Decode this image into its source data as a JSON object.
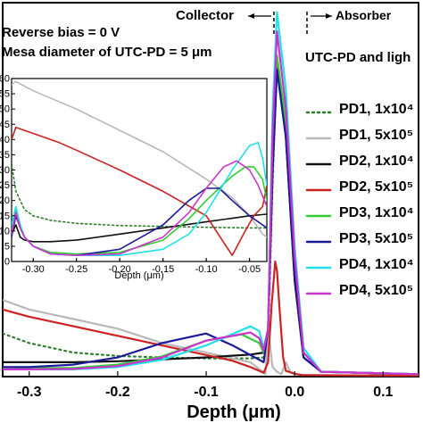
{
  "annotations": {
    "bias": "Reverse bias = 0 V",
    "mesa": "Mesa diameter of UTC-PD = 5 μm",
    "collector": "Collector",
    "absorber": "Absorber"
  },
  "colors": {
    "PD1_1e4": "#2e7d2e",
    "PD1_5e5": "#b8b8b8",
    "PD2_1e4": "#111111",
    "PD2_5e5": "#cc2222",
    "PD3_1e4": "#33cc33",
    "PD3_5e5": "#1a1a99",
    "PD4_1e4": "#22e0e8",
    "PD4_5e5": "#cc33cc"
  },
  "chart_data": [
    {
      "type": "line",
      "xlabel": "Depth (μm)",
      "xlim": [
        -0.33,
        0.14
      ],
      "ylim": [
        0,
        78
      ],
      "x_ticks": [
        "-0.3",
        "-0.2",
        "-0.1",
        "0.0",
        "0.1"
      ],
      "x_tick_values": [
        -0.3,
        -0.2,
        -0.1,
        0.0,
        0.1
      ],
      "legend_title": "UTC-PD and ligh",
      "series": [
        {
          "name": "PD1, 1x10⁴",
          "style": "dotted",
          "color_key": "PD1_1e4",
          "x": [
            -0.33,
            -0.3,
            -0.25,
            -0.2,
            -0.15,
            -0.1,
            -0.05,
            -0.035,
            -0.03,
            -0.025,
            -0.02,
            -0.01,
            0.0,
            0.01,
            0.03,
            0.14
          ],
          "y": [
            9,
            7,
            5,
            4.3,
            4,
            3.8,
            3.8,
            4,
            8,
            40,
            66,
            50,
            20,
            4,
            1,
            0.5
          ]
        },
        {
          "name": "PD1, 5x10⁵",
          "style": "solid",
          "color_key": "PD1_5e5",
          "x": [
            -0.33,
            -0.3,
            -0.25,
            -0.2,
            -0.15,
            -0.1,
            -0.05,
            -0.036,
            -0.033,
            -0.03,
            -0.025,
            -0.02,
            -0.015,
            -0.01,
            -0.005,
            0.0,
            0.01,
            0.14
          ],
          "y": [
            16,
            14,
            12,
            10,
            7,
            5,
            3,
            1,
            0.5,
            10,
            2,
            1,
            0.5,
            3,
            1,
            0.5,
            0.3,
            0.2
          ]
        },
        {
          "name": "PD2, 1x10⁴",
          "style": "solid",
          "color_key": "PD2_1e4",
          "x": [
            -0.33,
            -0.3,
            -0.25,
            -0.2,
            -0.15,
            -0.1,
            -0.05,
            -0.035,
            -0.03,
            -0.025,
            -0.02,
            -0.01,
            0.0,
            0.01,
            0.03,
            0.14
          ],
          "y": [
            3,
            3,
            3,
            3.2,
            3.6,
            4,
            4.6,
            5,
            10,
            45,
            65,
            50,
            20,
            4,
            1,
            0.5
          ]
        },
        {
          "name": "PD2, 5x10⁵",
          "style": "solid",
          "color_key": "PD2_5e5",
          "x": [
            -0.33,
            -0.3,
            -0.25,
            -0.2,
            -0.15,
            -0.1,
            -0.07,
            -0.05,
            -0.035,
            -0.03,
            -0.026,
            -0.022,
            -0.02,
            -0.017,
            -0.013,
            -0.01,
            0.0,
            0.01,
            0.14
          ],
          "y": [
            14,
            12.5,
            10.5,
            8.5,
            6.5,
            4.5,
            3.3,
            2,
            0.8,
            3,
            15,
            24,
            22,
            14,
            4,
            1.2,
            0.6,
            0.3,
            0.2
          ]
        },
        {
          "name": "PD3, 1x10⁴",
          "style": "solid",
          "color_key": "PD3_1e4",
          "x": [
            -0.33,
            -0.3,
            -0.25,
            -0.2,
            -0.15,
            -0.1,
            -0.06,
            -0.04,
            -0.035,
            -0.03,
            -0.025,
            -0.02,
            -0.01,
            0.0,
            0.01,
            0.03,
            0.14
          ],
          "y": [
            2,
            1.8,
            1.8,
            2.5,
            4.2,
            7.5,
            8.8,
            7,
            5,
            10,
            50,
            67,
            53,
            25,
            5,
            1,
            0.5
          ]
        },
        {
          "name": "PD3, 5x10⁵",
          "style": "solid",
          "color_key": "PD3_5e5",
          "x": [
            -0.33,
            -0.3,
            -0.25,
            -0.2,
            -0.15,
            -0.1,
            -0.07,
            -0.05,
            -0.035,
            -0.03,
            -0.025,
            -0.02,
            -0.01,
            0.0,
            0.01,
            0.03,
            0.14
          ],
          "y": [
            2,
            2,
            2.5,
            4,
            7,
            9,
            6.5,
            4.5,
            3,
            10,
            42,
            64,
            50,
            21,
            4,
            1,
            0.5
          ]
        },
        {
          "name": "PD4, 1x10⁴",
          "style": "solid",
          "color_key": "PD4_1e4",
          "x": [
            -0.33,
            -0.3,
            -0.25,
            -0.2,
            -0.15,
            -0.1,
            -0.05,
            -0.04,
            -0.035,
            -0.03,
            -0.025,
            -0.02,
            -0.01,
            0.0,
            0.01,
            0.03,
            0.14
          ],
          "y": [
            1.5,
            1.5,
            1.5,
            2,
            3.5,
            6.5,
            10.5,
            9.5,
            6,
            10,
            55,
            76,
            60,
            27,
            6,
            1,
            0.5
          ]
        },
        {
          "name": "PD4, 5x10⁵",
          "style": "solid",
          "color_key": "PD4_5e5",
          "x": [
            -0.33,
            -0.3,
            -0.25,
            -0.2,
            -0.15,
            -0.1,
            -0.05,
            -0.04,
            -0.035,
            -0.03,
            -0.025,
            -0.02,
            -0.01,
            0.0,
            0.01,
            0.03,
            0.14
          ],
          "y": [
            1.5,
            1.5,
            1.6,
            2.2,
            4,
            7.5,
            9.2,
            8,
            5.5,
            10,
            50,
            72,
            56,
            25,
            5,
            1,
            0.5
          ]
        }
      ]
    },
    {
      "type": "line",
      "xlabel": "Depth (μm)",
      "xlim": [
        -0.325,
        -0.03
      ],
      "ylim": [
        0,
        60
      ],
      "x_ticks": [
        "-0.30",
        "-0.25",
        "-0.20",
        "-0.15",
        "-0.10",
        "-0.05"
      ],
      "x_tick_values": [
        -0.3,
        -0.25,
        -0.2,
        -0.15,
        -0.1,
        -0.05
      ],
      "y_ticks": [
        "0",
        "5",
        "10",
        "15",
        "20",
        "25",
        "30",
        "35",
        "40",
        "45",
        "50",
        "55",
        "60"
      ],
      "y_tick_values": [
        0,
        5,
        10,
        15,
        20,
        25,
        30,
        35,
        40,
        45,
        50,
        55,
        60
      ],
      "series": [
        {
          "name": "PD1, 1x10⁴",
          "style": "dotted",
          "color_key": "PD1_1e4",
          "x": [
            -0.325,
            -0.32,
            -0.31,
            -0.3,
            -0.28,
            -0.25,
            -0.2,
            -0.15,
            -0.1,
            -0.05,
            -0.03
          ],
          "y": [
            32,
            23,
            17,
            15,
            13.5,
            12.5,
            11.8,
            11.5,
            11.2,
            11,
            11
          ]
        },
        {
          "name": "PD1, 5x10⁵",
          "style": "solid",
          "color_key": "PD1_5e5",
          "x": [
            -0.325,
            -0.32,
            -0.3,
            -0.25,
            -0.2,
            -0.15,
            -0.1,
            -0.07,
            -0.05,
            -0.04,
            -0.035,
            -0.03
          ],
          "y": [
            58,
            59,
            56,
            50,
            43,
            36,
            27,
            21,
            15,
            11,
            9,
            8
          ]
        },
        {
          "name": "PD2, 1x10⁴",
          "style": "solid",
          "color_key": "PD2_1e4",
          "x": [
            -0.325,
            -0.32,
            -0.315,
            -0.31,
            -0.3,
            -0.28,
            -0.25,
            -0.2,
            -0.15,
            -0.1,
            -0.05,
            -0.03
          ],
          "y": [
            9,
            12,
            8,
            7,
            6.5,
            6.5,
            7,
            9,
            11,
            13,
            15,
            15.5
          ]
        },
        {
          "name": "PD2, 5x10⁵",
          "style": "solid",
          "color_key": "PD2_5e5",
          "x": [
            -0.325,
            -0.32,
            -0.3,
            -0.27,
            -0.25,
            -0.2,
            -0.15,
            -0.1,
            -0.07,
            -0.055,
            -0.045,
            -0.035,
            -0.03
          ],
          "y": [
            40,
            44,
            42,
            39,
            36.5,
            30,
            23,
            15,
            2,
            10,
            15,
            18,
            25
          ]
        },
        {
          "name": "PD3, 1x10⁴",
          "style": "solid",
          "color_key": "PD3_1e4",
          "x": [
            -0.325,
            -0.32,
            -0.315,
            -0.31,
            -0.3,
            -0.28,
            -0.25,
            -0.2,
            -0.15,
            -0.12,
            -0.1,
            -0.07,
            -0.055,
            -0.045,
            -0.035,
            -0.03
          ],
          "y": [
            10,
            17,
            12,
            8,
            5,
            3,
            2.5,
            3,
            7,
            14,
            20,
            28,
            31,
            31,
            27,
            20
          ]
        },
        {
          "name": "PD3, 5x10⁵",
          "style": "solid",
          "color_key": "PD3_5e5",
          "x": [
            -0.325,
            -0.32,
            -0.315,
            -0.31,
            -0.3,
            -0.28,
            -0.25,
            -0.2,
            -0.15,
            -0.12,
            -0.1,
            -0.085,
            -0.07,
            -0.05,
            -0.035,
            -0.03
          ],
          "y": [
            8,
            15,
            11,
            8,
            5,
            2.5,
            2,
            4,
            12,
            20,
            24,
            24,
            20,
            15,
            12,
            11
          ]
        },
        {
          "name": "PD4, 1x10⁴",
          "style": "solid",
          "color_key": "PD4_1e4",
          "x": [
            -0.325,
            -0.32,
            -0.315,
            -0.31,
            -0.3,
            -0.28,
            -0.25,
            -0.2,
            -0.15,
            -0.12,
            -0.1,
            -0.07,
            -0.05,
            -0.04,
            -0.035,
            -0.03
          ],
          "y": [
            12,
            18,
            12,
            8,
            5,
            2.5,
            2,
            2,
            4,
            9,
            16,
            30,
            38,
            39,
            34,
            25
          ]
        },
        {
          "name": "PD4, 5x10⁵",
          "style": "solid",
          "color_key": "PD4_5e5",
          "x": [
            -0.325,
            -0.32,
            -0.315,
            -0.31,
            -0.3,
            -0.28,
            -0.25,
            -0.2,
            -0.15,
            -0.12,
            -0.1,
            -0.08,
            -0.065,
            -0.05,
            -0.04,
            -0.03
          ],
          "y": [
            9,
            16,
            11,
            8,
            5,
            2.5,
            2,
            2.5,
            8,
            16,
            24,
            31,
            33,
            30,
            25,
            18
          ]
        }
      ]
    }
  ]
}
